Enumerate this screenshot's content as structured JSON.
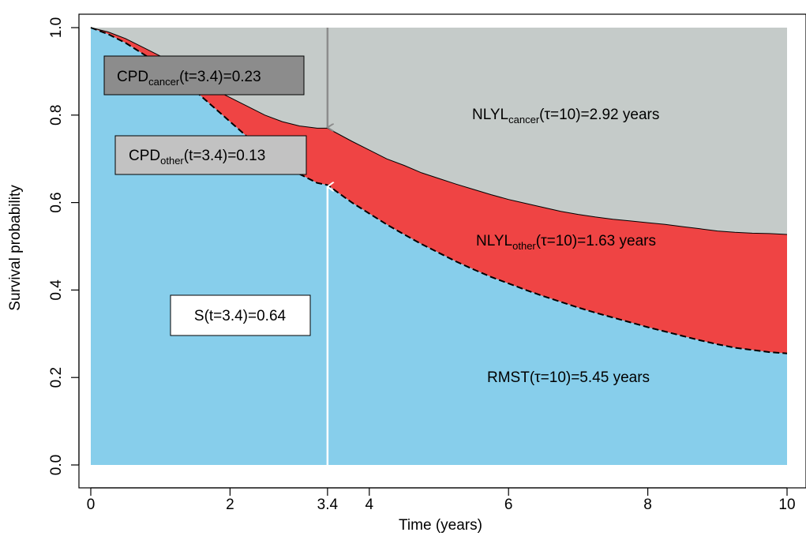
{
  "chart_data": {
    "type": "area",
    "xlabel": "Time (years)",
    "ylabel": "Survival probability",
    "xlim": [
      0,
      10
    ],
    "ylim": [
      0,
      1
    ],
    "x_ticks": [
      0,
      2,
      3.4,
      4,
      6,
      8,
      10
    ],
    "x_tick_labels": [
      "0",
      "2",
      "3.4",
      "4",
      "6",
      "8",
      "10"
    ],
    "y_ticks": [
      0,
      0.2,
      0.4,
      0.6,
      0.8,
      1.0
    ],
    "y_tick_labels": [
      "0.0",
      "0.2",
      "0.4",
      "0.6",
      "0.8",
      "1.0"
    ],
    "grid": false,
    "x": [
      0,
      0.25,
      0.5,
      0.75,
      1,
      1.25,
      1.5,
      1.75,
      2,
      2.25,
      2.5,
      2.75,
      3,
      3.25,
      3.4,
      3.75,
      4,
      4.25,
      4.5,
      4.75,
      5,
      5.25,
      5.5,
      5.75,
      6,
      6.25,
      6.5,
      6.75,
      7,
      7.25,
      7.5,
      7.75,
      8,
      8.25,
      8.5,
      8.75,
      9,
      9.25,
      9.5,
      9.75,
      10
    ],
    "series": [
      {
        "role": "overall_survival",
        "color": "#87CEEB",
        "values": [
          1.0,
          0.985,
          0.965,
          0.94,
          0.915,
          0.885,
          0.855,
          0.82,
          0.785,
          0.75,
          0.72,
          0.69,
          0.665,
          0.645,
          0.64,
          0.6,
          0.575,
          0.55,
          0.527,
          0.505,
          0.485,
          0.465,
          0.447,
          0.43,
          0.415,
          0.4,
          0.386,
          0.373,
          0.36,
          0.348,
          0.337,
          0.326,
          0.315,
          0.305,
          0.295,
          0.285,
          0.276,
          0.268,
          0.263,
          0.258,
          0.255
        ]
      },
      {
        "role": "survival_from_cancer",
        "color": "#EF4444",
        "values": [
          1.0,
          0.99,
          0.975,
          0.955,
          0.935,
          0.91,
          0.885,
          0.86,
          0.84,
          0.82,
          0.8,
          0.785,
          0.775,
          0.77,
          0.77,
          0.74,
          0.72,
          0.7,
          0.685,
          0.668,
          0.655,
          0.642,
          0.63,
          0.618,
          0.607,
          0.598,
          0.589,
          0.58,
          0.573,
          0.567,
          0.562,
          0.558,
          0.554,
          0.55,
          0.545,
          0.54,
          0.535,
          0.532,
          0.53,
          0.529,
          0.527
        ]
      }
    ],
    "colors": {
      "upper_region": "#C5CBC9",
      "middle_region": "#EF4444",
      "lower_region": "#87CEEB",
      "cancer_arrow": "#8C8C8C",
      "survival_arrow": "#FFFFFF",
      "cpd_cancer_box": "#8C8C8C",
      "cpd_other_box": "#C2C2C2",
      "survival_box": "#FFFFFF"
    },
    "marker_time": 3.4,
    "annotations": {
      "cpd_cancer": {
        "main": "CPD",
        "sub": "cancer",
        "rest": "(t=3.4)=0.23"
      },
      "cpd_other": {
        "main": "CPD",
        "sub": "other",
        "rest": "(t=3.4)=0.13"
      },
      "survival": {
        "text": "S(t=3.4)=0.64"
      },
      "nlyl_cancer": {
        "main": "NLYL",
        "sub": "cancer",
        "rest": "(τ=10)=2.92 years"
      },
      "nlyl_other": {
        "main": "NLYL",
        "sub": "other",
        "rest": "(τ=10)=1.63 years"
      },
      "rmst": {
        "text": "RMST(τ=10)=5.45 years"
      }
    }
  }
}
